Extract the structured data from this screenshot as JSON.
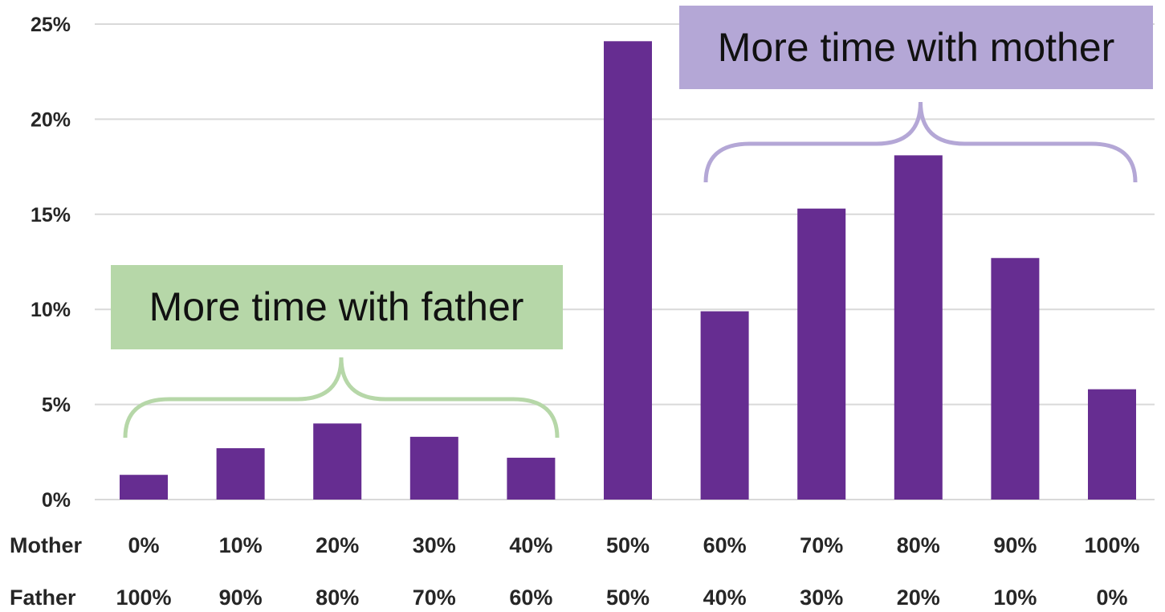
{
  "chart_data": {
    "type": "bar",
    "categories_mother": [
      "0%",
      "10%",
      "20%",
      "30%",
      "40%",
      "50%",
      "60%",
      "70%",
      "80%",
      "90%",
      "100%"
    ],
    "categories_father": [
      "100%",
      "90%",
      "80%",
      "70%",
      "60%",
      "50%",
      "40%",
      "30%",
      "20%",
      "10%",
      "0%"
    ],
    "row_labels": {
      "mother": "Mother",
      "father": "Father"
    },
    "values": [
      1.3,
      2.7,
      4.0,
      3.3,
      2.2,
      24.1,
      9.9,
      15.3,
      18.1,
      12.7,
      5.8
    ],
    "y_ticks": [
      "0%",
      "5%",
      "10%",
      "15%",
      "20%",
      "25%"
    ],
    "ylim": [
      0,
      25
    ],
    "grid": true,
    "bar_color": "#662d91",
    "annotations": [
      {
        "text": "More time with father",
        "color": "#b6d7a8",
        "bracket_color": "#b6d7a8",
        "spans_categories": [
          0,
          4
        ]
      },
      {
        "text": "More time with mother",
        "color": "#b4a7d6",
        "bracket_color": "#b4a7d6",
        "spans_categories": [
          6,
          10
        ]
      }
    ]
  }
}
